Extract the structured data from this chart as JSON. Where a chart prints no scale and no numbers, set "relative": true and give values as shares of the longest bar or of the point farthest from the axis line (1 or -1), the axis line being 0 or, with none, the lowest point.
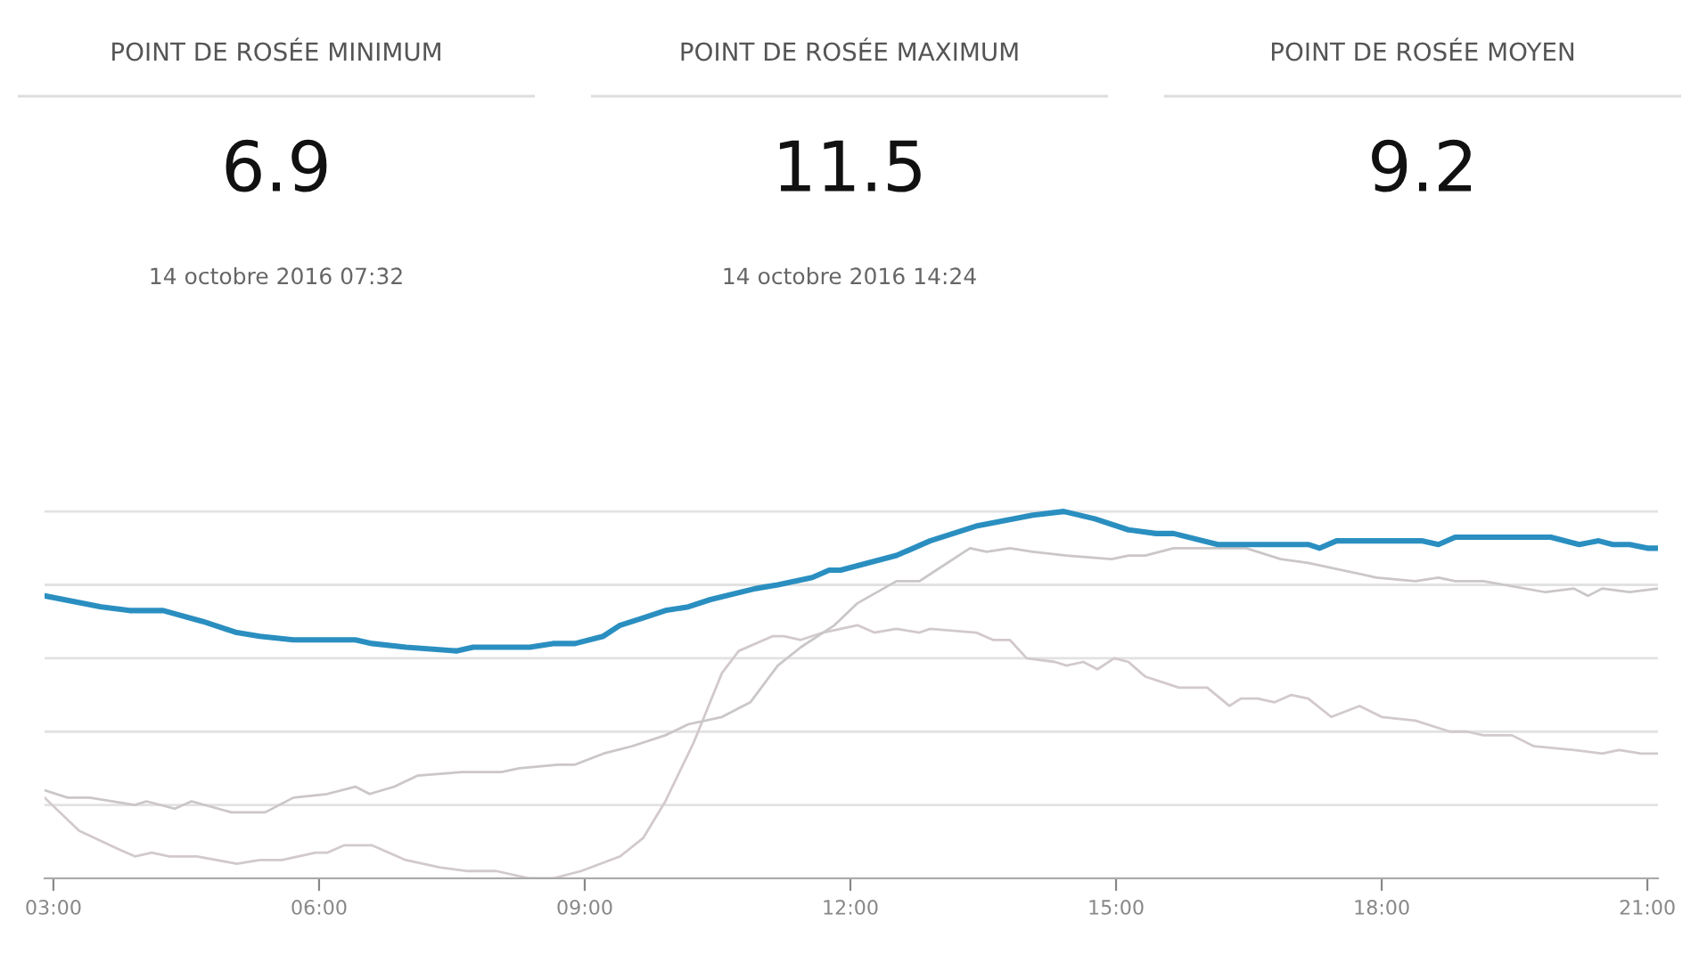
{
  "chart_data": [
    {
      "type": "other",
      "title": "POINT DE ROSÉE MINIMUM",
      "annotations": [
        "6.9",
        "14 octobre 2016 07:32"
      ]
    },
    {
      "type": "other",
      "title": "POINT DE ROSÉE MAXIMUM",
      "annotations": [
        "11.5",
        "14 octobre 2016 14:24"
      ]
    },
    {
      "type": "other",
      "title": "POINT DE ROSÉE MOYEN",
      "annotations": [
        "9.2"
      ]
    },
    {
      "type": "line",
      "relative": true,
      "xlim": [
        2.9,
        21.12
      ],
      "xticks": [
        {
          "value": 3,
          "label": "03:00"
        },
        {
          "value": 6,
          "label": "06:00"
        },
        {
          "value": 9,
          "label": "09:00"
        },
        {
          "value": 12,
          "label": "12:00"
        },
        {
          "value": 15,
          "label": "15:00"
        },
        {
          "value": 18,
          "label": "18:00"
        },
        {
          "value": 21,
          "label": "21:00"
        }
      ],
      "tick_labels": "x",
      "grid": "y",
      "series": [
        {
          "color": "#d2c9cc",
          "x": [
            2.9,
            3.29,
            3.73,
            3.92,
            4.11,
            4.31,
            4.62,
            5.07,
            5.33,
            5.58,
            5.96,
            6.09,
            6.28,
            6.6,
            6.98,
            7.36,
            7.68,
            8.0,
            8.38,
            8.64,
            8.96,
            9.4,
            9.66,
            9.91,
            10.23,
            10.55,
            10.74,
            11.12,
            11.25,
            11.44,
            11.69,
            12.08,
            12.27,
            12.52,
            12.78,
            12.9,
            13.42,
            13.61,
            13.8,
            13.99,
            14.31,
            14.44,
            14.63,
            14.79,
            14.98,
            15.14,
            15.33,
            15.71,
            16.03,
            16.28,
            16.41,
            16.6,
            16.79,
            16.98,
            17.17,
            17.43,
            17.75,
            18.0,
            18.38,
            18.77,
            18.96,
            19.15,
            19.47,
            19.72,
            20.17,
            20.49,
            20.68,
            20.93,
            21.12
          ],
          "values": [
            0.22,
            0.13,
            0.08,
            0.06,
            0.07,
            0.06,
            0.06,
            0.04,
            0.05,
            0.05,
            0.07,
            0.07,
            0.09,
            0.09,
            0.05,
            0.03,
            0.02,
            0.02,
            0.0,
            0.0,
            0.02,
            0.06,
            0.11,
            0.21,
            0.37,
            0.56,
            0.62,
            0.66,
            0.66,
            0.65,
            0.67,
            0.69,
            0.67,
            0.68,
            0.67,
            0.68,
            0.67,
            0.65,
            0.65,
            0.6,
            0.59,
            0.58,
            0.59,
            0.57,
            0.6,
            0.59,
            0.55,
            0.52,
            0.52,
            0.47,
            0.49,
            0.49,
            0.48,
            0.5,
            0.49,
            0.44,
            0.47,
            0.44,
            0.43,
            0.4,
            0.4,
            0.39,
            0.39,
            0.36,
            0.35,
            0.34,
            0.35,
            0.34,
            0.34
          ]
        },
        {
          "color": "#cbc6c8",
          "x": [
            2.9,
            3.16,
            3.41,
            3.92,
            4.05,
            4.37,
            4.56,
            5.01,
            5.39,
            5.71,
            6.09,
            6.41,
            6.57,
            6.85,
            7.11,
            7.62,
            8.06,
            8.26,
            8.7,
            8.89,
            9.21,
            9.53,
            9.91,
            10.17,
            10.55,
            10.87,
            11.18,
            11.44,
            11.82,
            12.08,
            12.52,
            12.78,
            12.97,
            13.35,
            13.54,
            13.8,
            14.06,
            14.44,
            14.95,
            15.14,
            15.33,
            15.65,
            16.47,
            16.86,
            17.17,
            17.94,
            18.38,
            18.64,
            18.83,
            19.15,
            19.85,
            20.17,
            20.33,
            20.49,
            20.8,
            21.12
          ],
          "values": [
            0.24,
            0.22,
            0.22,
            0.2,
            0.21,
            0.19,
            0.21,
            0.18,
            0.18,
            0.22,
            0.23,
            0.25,
            0.23,
            0.25,
            0.28,
            0.29,
            0.29,
            0.3,
            0.31,
            0.31,
            0.34,
            0.36,
            0.39,
            0.42,
            0.44,
            0.48,
            0.58,
            0.63,
            0.69,
            0.75,
            0.81,
            0.81,
            0.84,
            0.9,
            0.89,
            0.9,
            0.89,
            0.88,
            0.87,
            0.88,
            0.88,
            0.9,
            0.9,
            0.87,
            0.86,
            0.82,
            0.81,
            0.82,
            0.81,
            0.81,
            0.78,
            0.79,
            0.77,
            0.79,
            0.78,
            0.79
          ]
        },
        {
          "color": "#2a8fc0",
          "x": [
            2.9,
            3.54,
            3.86,
            4.24,
            4.69,
            5.07,
            5.33,
            5.71,
            6.41,
            6.6,
            6.98,
            7.55,
            7.74,
            8.38,
            8.64,
            8.89,
            9.21,
            9.4,
            9.66,
            9.91,
            10.17,
            10.42,
            10.93,
            11.18,
            11.57,
            11.76,
            11.89,
            12.52,
            12.9,
            13.42,
            14.06,
            14.41,
            14.76,
            15.14,
            15.45,
            15.65,
            16.15,
            17.17,
            17.3,
            17.49,
            18.45,
            18.64,
            18.83,
            19.91,
            20.23,
            20.45,
            20.61,
            20.8,
            21.0,
            21.12
          ],
          "values": [
            0.77,
            0.74,
            0.73,
            0.73,
            0.7,
            0.67,
            0.66,
            0.65,
            0.65,
            0.64,
            0.63,
            0.62,
            0.63,
            0.63,
            0.64,
            0.64,
            0.66,
            0.69,
            0.71,
            0.73,
            0.74,
            0.76,
            0.79,
            0.8,
            0.82,
            0.84,
            0.84,
            0.88,
            0.92,
            0.96,
            0.99,
            1.0,
            0.98,
            0.95,
            0.94,
            0.94,
            0.91,
            0.91,
            0.9,
            0.92,
            0.92,
            0.91,
            0.93,
            0.93,
            0.91,
            0.92,
            0.91,
            0.91,
            0.9,
            0.9
          ]
        }
      ]
    }
  ]
}
